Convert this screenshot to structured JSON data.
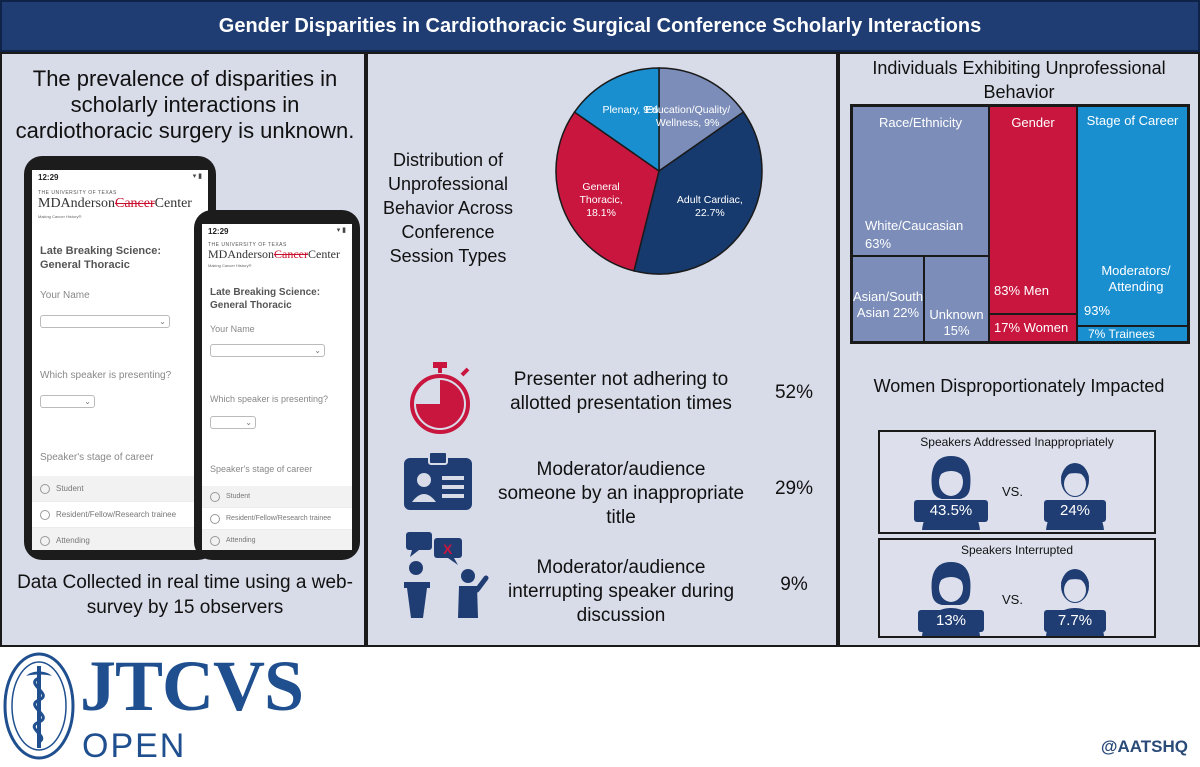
{
  "banner": {
    "title": "Gender Disparities in Cardiothoracic Surgical Conference Scholarly Interactions"
  },
  "left": {
    "lead": "The prevalence of disparities in scholarly interactions in cardiothoracic surgery is unknown.",
    "footnote": "Data Collected in real time using a web-survey by 15 observers",
    "phone": {
      "time": "12:29",
      "university": "THE UNIVERSITY OF TEXAS",
      "brand_prefix": "MDAnderson",
      "brand_struck": "Cancer",
      "brand_suffix": "Center",
      "motto": "Making Cancer History®",
      "heading": "Late Breaking Science: General Thoracic",
      "q_name": "Your Name",
      "q_speaker": "Which speaker is presenting?",
      "q_stage": "Speaker's stage of career",
      "options": [
        "Student",
        "Resident/Fellow/Research trainee",
        "Attending"
      ]
    }
  },
  "middle": {
    "pie_title": "Distribution of Unprofessional Behavior Across Conference Session Types",
    "chart_data": {
      "type": "pie",
      "slices": [
        {
          "label": "Education/Quality/ Wellness, 9%",
          "value": 9,
          "color": "#7b8db8"
        },
        {
          "label": "Adult Cardiac, 22.7%",
          "value": 22.7,
          "color": "#173a6e"
        },
        {
          "label": "General Thoracic, 18.1%",
          "value": 18.1,
          "color": "#c8163f"
        },
        {
          "label": "Plenary, 9%",
          "value": 9,
          "color": "#1a8fd0"
        }
      ]
    },
    "stats": [
      {
        "text": "Presenter not adhering to allotted presentation times",
        "pct": "52%",
        "icon": "stopwatch-icon"
      },
      {
        "text": "Moderator/audience someone by an inappropriate title",
        "pct": "29%",
        "icon": "id-badge-icon"
      },
      {
        "text": "Moderator/audience interrupting speaker during discussion",
        "pct": "9%",
        "icon": "podium-interrupt-icon"
      }
    ]
  },
  "right": {
    "treemap_title": "Individuals Exhibiting Unprofessional Behavior",
    "treemap": {
      "race": {
        "title": "Race/Ethnicity",
        "white": "White/Caucasian 63%",
        "asian": "Asian/South Asian 22%",
        "unknown": "Unknown 15%",
        "color": "#7b8db8"
      },
      "gender": {
        "title": "Gender",
        "men": "83% Men",
        "women": "17% Women",
        "color": "#c8163f"
      },
      "career": {
        "title": "Stage of Career",
        "attending": "Moderators/ Attending",
        "attending_pct": "93%",
        "trainees": "7% Trainees",
        "color": "#1a8fd0"
      }
    },
    "impact_title": "Women Disproportionately Impacted",
    "impacts": [
      {
        "label": "Speakers Addressed Inappropriately",
        "women": "43.5%",
        "men": "24%",
        "vs": "VS."
      },
      {
        "label": "Speakers Interrupted",
        "women": "13%",
        "men": "7.7%",
        "vs": "VS."
      }
    ]
  },
  "footer": {
    "journal": "JTCVS",
    "edition": "OPEN",
    "handle": "@AATSHQ"
  }
}
